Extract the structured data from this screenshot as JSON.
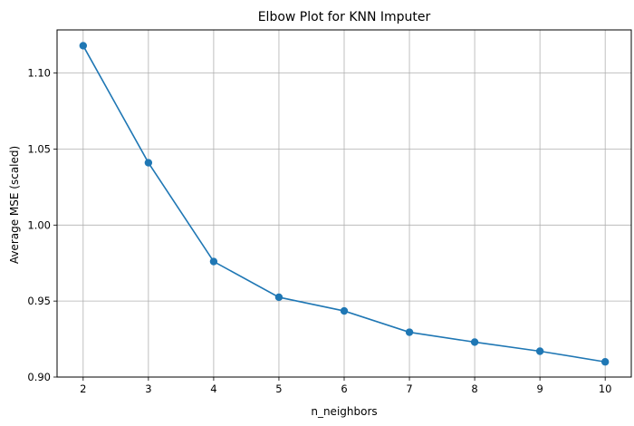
{
  "chart_data": {
    "type": "line",
    "title": "Elbow Plot for KNN Imputer",
    "xlabel": "n_neighbors",
    "ylabel": "Average MSE (scaled)",
    "x": [
      2,
      3,
      4,
      5,
      6,
      7,
      8,
      9,
      10
    ],
    "series": [
      {
        "values": [
          1.118,
          1.041,
          0.976,
          0.9525,
          0.9435,
          0.9295,
          0.923,
          0.917,
          0.91
        ]
      }
    ],
    "xticks": [
      "2",
      "3",
      "4",
      "5",
      "6",
      "7",
      "8",
      "9",
      "10"
    ],
    "yticks": [
      "0.90",
      "0.95",
      "1.00",
      "1.05",
      "1.10"
    ],
    "xlim": [
      1.6,
      10.4
    ],
    "ylim": [
      0.9,
      1.1284
    ],
    "grid": true,
    "marker": "circle",
    "colors": {
      "line": "#1f77b4",
      "grid": "#b0b0b0",
      "axis": "#000000"
    }
  }
}
